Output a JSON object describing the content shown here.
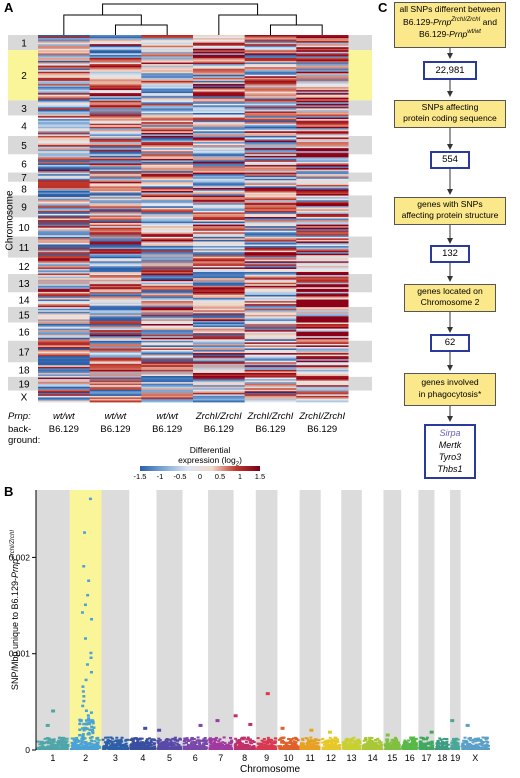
{
  "panel_labels": {
    "a": "A",
    "b": "B",
    "c": "C"
  },
  "heatmap": {
    "chromosome_axis_label": "Chromosome",
    "chromosomes": [
      "1",
      "2",
      "3",
      "4",
      "5",
      "6",
      "7",
      "8",
      "9",
      "10",
      "11",
      "12",
      "13",
      "14",
      "15",
      "16",
      "17",
      "18",
      "19",
      "X"
    ],
    "chromosome_band_fraction": [
      0.033,
      0.11,
      0.033,
      0.045,
      0.04,
      0.04,
      0.02,
      0.03,
      0.048,
      0.042,
      0.046,
      0.036,
      0.04,
      0.032,
      0.034,
      0.04,
      0.047,
      0.032,
      0.03,
      0.025
    ],
    "highlighted_chromosome": "2",
    "prnp_row_label": "Prnp:",
    "background_row_label": "back-\nground:",
    "columns": [
      {
        "prnp": "wt/wt",
        "background": "B6.129"
      },
      {
        "prnp": "wt/wt",
        "background": "B6.129"
      },
      {
        "prnp": "wt/wt",
        "background": "B6.129"
      },
      {
        "prnp": "ZrchI/ZrchI",
        "background": "B6.129"
      },
      {
        "prnp": "ZrchI/ZrchI",
        "background": "B6.129"
      },
      {
        "prnp": "ZrchI/ZrchI",
        "background": "B6.129"
      }
    ],
    "colorbar": {
      "title_line1": "Differential",
      "title_line2": "expression (log",
      "title_sub": "2",
      "title_end": ")",
      "ticks": [
        "-1.5",
        "-1",
        "-0.5",
        "0",
        "0.5",
        "1",
        "1.5"
      ],
      "colors": [
        "#2b5fa8",
        "#7fa9d6",
        "#dde6f0",
        "#f0d8cc",
        "#c0392b",
        "#7a0019"
      ]
    }
  },
  "chart_data": {
    "type": "scatter",
    "ylabel_prefix": "SNP/Mbp unique to B6.129-",
    "ylabel_gene": "Prnp",
    "ylabel_sup": "ZrchI/ZrchI",
    "xlabel": "Chromosome",
    "y_ticks": [
      0,
      0.001,
      0.002
    ],
    "y_tick_labels": [
      "0",
      "0.001",
      "0.002"
    ],
    "ylim": [
      0,
      0.0027
    ],
    "highlighted_chromosome": "2",
    "chromosomes": [
      {
        "name": "1",
        "color": "#4fa6a8"
      },
      {
        "name": "2",
        "color": "#4aa3d8"
      },
      {
        "name": "3",
        "color": "#2e5fa8"
      },
      {
        "name": "4",
        "color": "#3a4fa0"
      },
      {
        "name": "5",
        "color": "#5a4aa8"
      },
      {
        "name": "6",
        "color": "#7a48a8"
      },
      {
        "name": "7",
        "color": "#a03aa0"
      },
      {
        "name": "8",
        "color": "#c0306a"
      },
      {
        "name": "9",
        "color": "#d83850"
      },
      {
        "name": "10",
        "color": "#e0602a"
      },
      {
        "name": "11",
        "color": "#e8a020"
      },
      {
        "name": "12",
        "color": "#e8c828"
      },
      {
        "name": "13",
        "color": "#c8d030"
      },
      {
        "name": "14",
        "color": "#a8c838"
      },
      {
        "name": "15",
        "color": "#80c040"
      },
      {
        "name": "16",
        "color": "#58b848"
      },
      {
        "name": "17",
        "color": "#40a860"
      },
      {
        "name": "18",
        "color": "#3c9c80"
      },
      {
        "name": "19",
        "color": "#48a898"
      },
      {
        "name": "X",
        "color": "#5aa0c8"
      }
    ],
    "chromosome_width_fraction": [
      0.061,
      0.057,
      0.05,
      0.049,
      0.047,
      0.046,
      0.046,
      0.04,
      0.039,
      0.04,
      0.038,
      0.037,
      0.037,
      0.039,
      0.032,
      0.031,
      0.029,
      0.028,
      0.019,
      0.053
    ],
    "points_chr2": [
      0.0026,
      0.00225,
      0.0019,
      0.00175,
      0.0016,
      0.0015,
      0.00142,
      0.00135,
      0.00115,
      0.001,
      0.00095,
      0.00088,
      0.0008,
      0.00072,
      0.00065,
      0.0006,
      0.00055,
      0.0005,
      0.00045,
      0.0004,
      0.00038,
      0.00035,
      0.00032,
      0.0003
    ],
    "peaks_other": [
      {
        "chr": "1",
        "value": 0.0004
      },
      {
        "chr": "1",
        "value": 0.00025
      },
      {
        "chr": "4",
        "value": 0.00022
      },
      {
        "chr": "5",
        "value": 0.0002
      },
      {
        "chr": "6",
        "value": 0.00025
      },
      {
        "chr": "7",
        "value": 0.0003
      },
      {
        "chr": "8",
        "value": 0.00035
      },
      {
        "chr": "8",
        "value": 0.00026
      },
      {
        "chr": "9",
        "value": 0.00058
      },
      {
        "chr": "10",
        "value": 0.00022
      },
      {
        "chr": "11",
        "value": 0.0002
      },
      {
        "chr": "12",
        "value": 0.00018
      },
      {
        "chr": "15",
        "value": 0.00015
      },
      {
        "chr": "17",
        "value": 0.00018
      },
      {
        "chr": "19",
        "value": 0.0003
      },
      {
        "chr": "X",
        "value": 0.00025
      }
    ]
  },
  "flowchart": {
    "box1_line1": "all SNPs different between",
    "box1_line2_pre": "B6.129-",
    "box1_line2_gene": "Prnp",
    "box1_line2_sup": "ZrchI/ZrchI",
    "box1_line2_post": " and",
    "box1_line3_pre": "B6.129-",
    "box1_line3_gene": "Prnp",
    "box1_line3_sup": "wt/wt",
    "count1": "22,981",
    "step2_line1": "SNPs affecting",
    "step2_line2": "protein coding sequence",
    "count2": "554",
    "step3_line1": "genes with SNPs",
    "step3_line2": "affecting protein structure",
    "count3": "132",
    "step4_line1": "genes located on",
    "step4_line2": "Chromosome 2",
    "count4": "62",
    "step5_line1": "genes involved",
    "step5_line2": "in phagocytosis*",
    "genes": [
      "Sirpa",
      "Mertk",
      "Tyro3",
      "Thbs1"
    ],
    "colors": {
      "step_fill": "#fbe88a",
      "step_border": "#555555",
      "count_border": "#2b3a9a",
      "highlight_gene": "#6a63b4"
    }
  }
}
